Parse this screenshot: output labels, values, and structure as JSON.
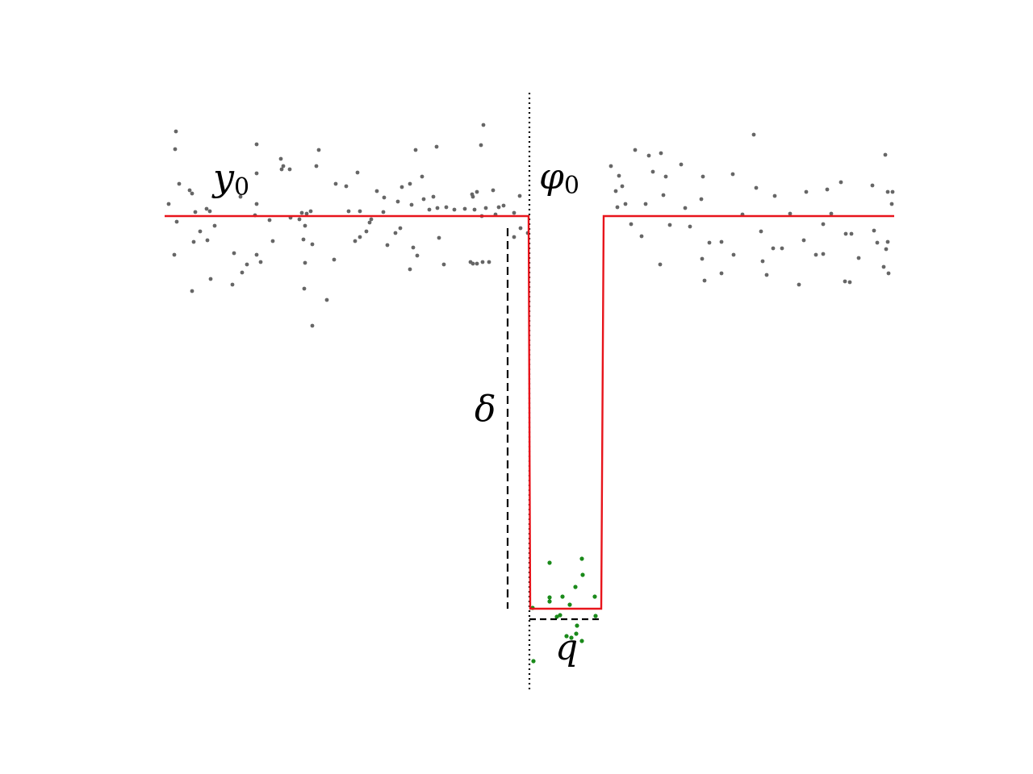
{
  "labels": {
    "baseline": {
      "symbol": "y",
      "subscript": "0"
    },
    "phase": {
      "symbol": "φ",
      "subscript": "0"
    },
    "depth": {
      "symbol": "δ"
    },
    "duration": {
      "symbol": "q"
    }
  },
  "colors": {
    "model_line": "#e8141b",
    "out_of_transit_points": "#666666",
    "in_transit_points": "#1a8a1a",
    "annotation": "#000000",
    "background": "#ffffff"
  }
}
